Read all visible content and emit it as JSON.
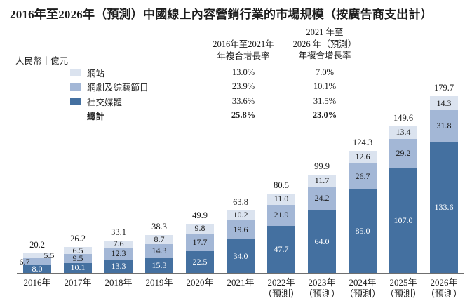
{
  "title": "2016年至2026年（預測）中國線上內容營銷行業的市場規模（按廣告商支出計）",
  "unit_label": "人民幣十億元",
  "legend": {
    "items": [
      {
        "label": "網站",
        "color": "#dbe3ef"
      },
      {
        "label": "網劇及綜藝節目",
        "color": "#a3b7d6"
      },
      {
        "label": "社交媒體",
        "color": "#4470a0"
      }
    ],
    "total_label": "總計"
  },
  "cagr_columns": [
    {
      "header_lines": [
        "2016年至2021年",
        "年複合增長率"
      ],
      "values": [
        "13.0%",
        "23.9%",
        "33.6%"
      ],
      "total_value": "25.8%"
    },
    {
      "header_lines": [
        "2021 年至",
        "2026 年（預測）",
        "年複合增長率"
      ],
      "values": [
        "7.0%",
        "10.1%",
        "31.5%"
      ],
      "total_value": "23.0%"
    }
  ],
  "chart_data": {
    "type": "bar",
    "stacked": true,
    "title": "2016年至2026年（預測）中國線上內容營銷行業的市場規模（按廣告商支出計）",
    "ylabel": "人民幣十億元",
    "xlabel": "",
    "ylim": [
      0,
      185
    ],
    "grid": false,
    "legend_position": "top-left",
    "categories": [
      {
        "label": "2016年",
        "sublabel": ""
      },
      {
        "label": "2017年",
        "sublabel": ""
      },
      {
        "label": "2018年",
        "sublabel": ""
      },
      {
        "label": "2019年",
        "sublabel": ""
      },
      {
        "label": "2020年",
        "sublabel": ""
      },
      {
        "label": "2021年",
        "sublabel": ""
      },
      {
        "label": "2022年",
        "sublabel": "（預測）"
      },
      {
        "label": "2023年",
        "sublabel": "（預測）"
      },
      {
        "label": "2024年",
        "sublabel": "（預測）"
      },
      {
        "label": "2025年",
        "sublabel": "（預測）"
      },
      {
        "label": "2026年",
        "sublabel": "（預測）"
      }
    ],
    "series": [
      {
        "name": "網站",
        "color": "#dbe3ef",
        "values": [
          5.5,
          6.5,
          7.6,
          8.7,
          9.8,
          10.2,
          11.0,
          11.7,
          12.6,
          13.4,
          14.3
        ]
      },
      {
        "name": "網劇及綜藝節目",
        "color": "#a3b7d6",
        "values": [
          6.7,
          9.5,
          12.3,
          14.3,
          17.7,
          19.6,
          21.9,
          24.2,
          26.7,
          29.2,
          31.8
        ]
      },
      {
        "name": "社交媒體",
        "color": "#4470a0",
        "values": [
          8.0,
          10.1,
          13.3,
          15.3,
          22.5,
          34.0,
          47.7,
          64.0,
          85.0,
          107.0,
          133.6
        ]
      }
    ],
    "totals": [
      20.2,
      26.2,
      33.1,
      38.3,
      49.9,
      63.8,
      80.5,
      99.9,
      124.3,
      149.6,
      179.7
    ]
  }
}
